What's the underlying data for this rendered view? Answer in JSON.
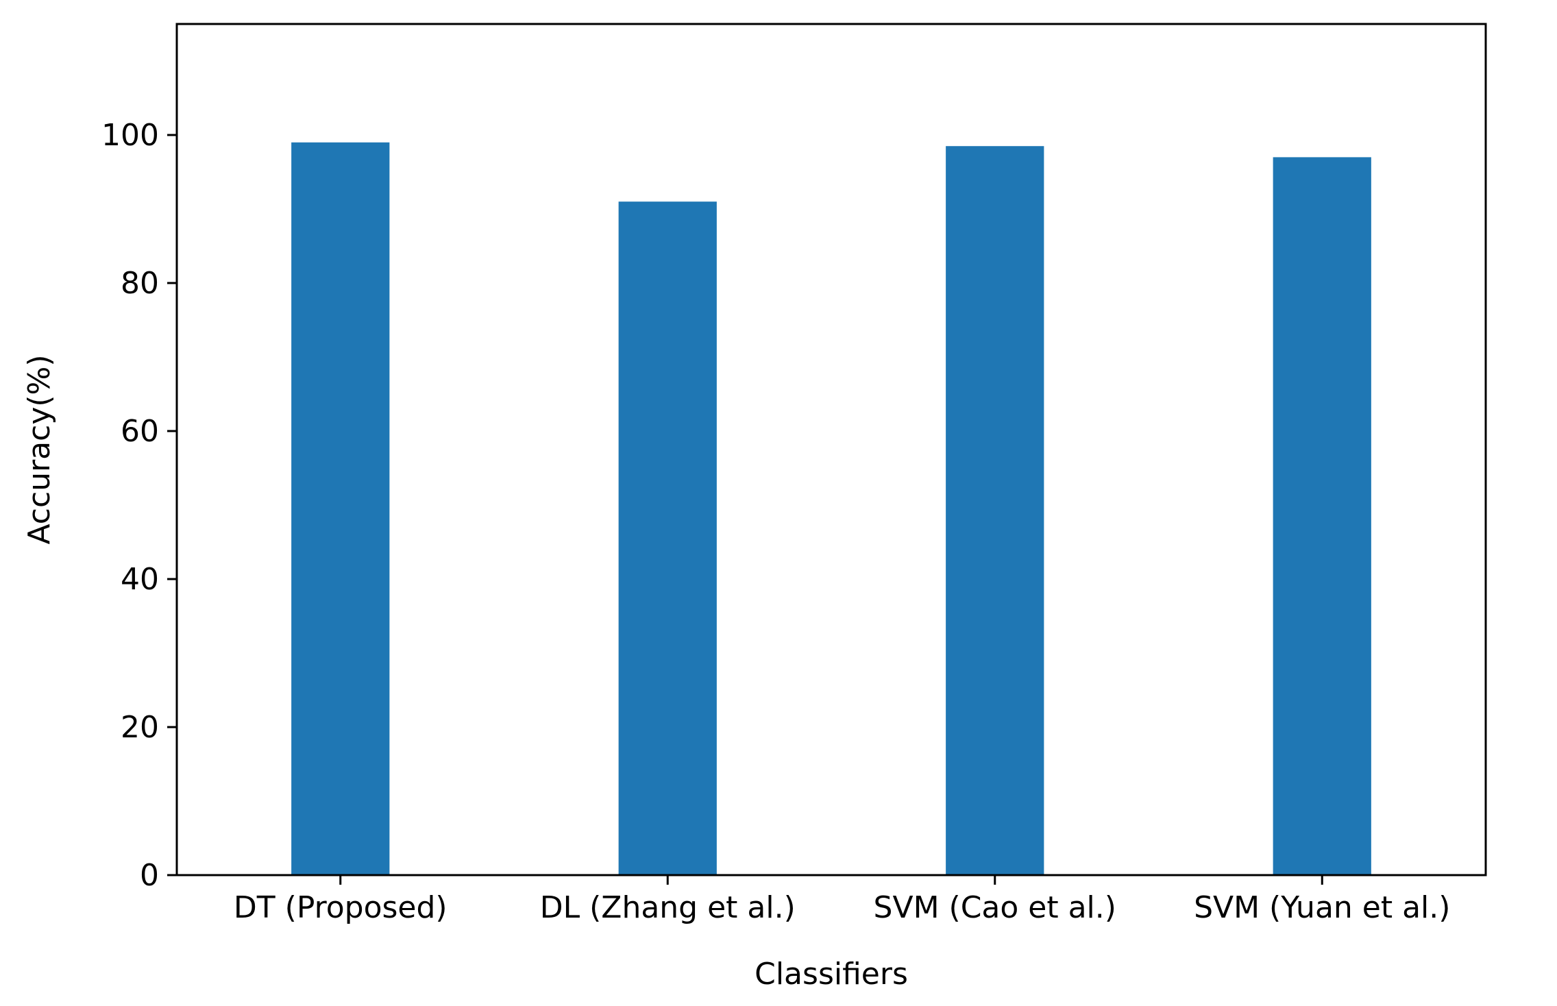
{
  "chart_data": {
    "type": "bar",
    "title": "",
    "xlabel": "Classifiers",
    "ylabel": "Accuracy(%)",
    "categories": [
      "DT (Proposed)",
      "DL (Zhang et al.)",
      "SVM (Cao et al.)",
      "SVM (Yuan et al.)"
    ],
    "values": [
      99.0,
      91.0,
      98.5,
      97.0
    ],
    "ylim": [
      0,
      115
    ],
    "yticks": [
      0,
      20,
      40,
      60,
      80,
      100
    ],
    "ytick_labels": [
      "0",
      "20",
      "40",
      "60",
      "80",
      "100"
    ],
    "bar_color": "#1f77b4",
    "grid": false,
    "legend": "none"
  }
}
